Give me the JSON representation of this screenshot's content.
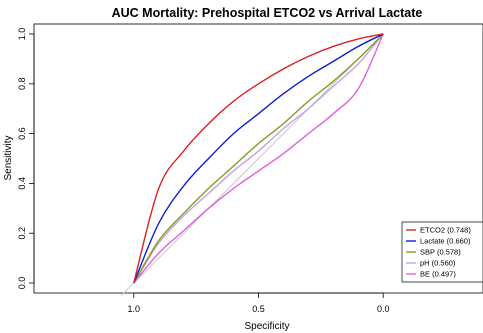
{
  "chart_data": {
    "type": "line",
    "title": "AUC Mortality: Prehospital ETCO2 vs Arrival Lactate",
    "xlabel": "Specificity",
    "ylabel": "Sensitivity",
    "x_reversed": true,
    "xlim": [
      1.4,
      -0.4
    ],
    "ylim": [
      -0.04,
      1.04
    ],
    "x_ticks": [
      1.0,
      0.5,
      0.0
    ],
    "x_tick_labels": [
      "1.0",
      "0.5",
      "0.0"
    ],
    "y_ticks": [
      0.0,
      0.2,
      0.4,
      0.6,
      0.8,
      1.0
    ],
    "y_tick_labels": [
      "0.0",
      "0.2",
      "0.4",
      "0.6",
      "0.8",
      "1.0"
    ],
    "grid": false,
    "reference_line": {
      "from": [
        1.0,
        0.0
      ],
      "to": [
        0.0,
        1.0
      ],
      "color": "#c8c8c8"
    },
    "legend_position": "bottom-right",
    "series": [
      {
        "name": "ETCO2 (0.748)",
        "color": "#e02020",
        "x": [
          1.0,
          0.9,
          0.8,
          0.7,
          0.6,
          0.5,
          0.4,
          0.3,
          0.2,
          0.1,
          0.0
        ],
        "y": [
          0.0,
          0.38,
          0.53,
          0.64,
          0.73,
          0.8,
          0.86,
          0.91,
          0.95,
          0.98,
          1.0
        ]
      },
      {
        "name": "Lactate (0.660)",
        "color": "#1020d0",
        "x": [
          1.0,
          0.9,
          0.8,
          0.7,
          0.6,
          0.5,
          0.4,
          0.3,
          0.2,
          0.1,
          0.0
        ],
        "y": [
          0.0,
          0.24,
          0.39,
          0.5,
          0.6,
          0.68,
          0.76,
          0.83,
          0.89,
          0.95,
          1.0
        ]
      },
      {
        "name": "SBP (0.578)",
        "color": "#7ea020",
        "x": [
          1.0,
          0.9,
          0.8,
          0.7,
          0.6,
          0.5,
          0.4,
          0.3,
          0.2,
          0.1,
          0.0
        ],
        "y": [
          0.0,
          0.17,
          0.28,
          0.38,
          0.47,
          0.56,
          0.64,
          0.73,
          0.81,
          0.9,
          1.0
        ]
      },
      {
        "name": "pH (0.560)",
        "color": "#c8a0e8",
        "x": [
          1.0,
          0.9,
          0.8,
          0.7,
          0.6,
          0.5,
          0.4,
          0.3,
          0.2,
          0.1,
          0.0
        ],
        "y": [
          0.0,
          0.16,
          0.27,
          0.36,
          0.45,
          0.53,
          0.62,
          0.7,
          0.79,
          0.88,
          1.0
        ]
      },
      {
        "name": "BE (0.497)",
        "color": "#e060e0",
        "x": [
          1.0,
          0.9,
          0.8,
          0.7,
          0.6,
          0.5,
          0.4,
          0.3,
          0.2,
          0.1,
          0.0
        ],
        "y": [
          0.0,
          0.12,
          0.21,
          0.3,
          0.38,
          0.45,
          0.52,
          0.6,
          0.68,
          0.78,
          1.0
        ]
      }
    ]
  }
}
